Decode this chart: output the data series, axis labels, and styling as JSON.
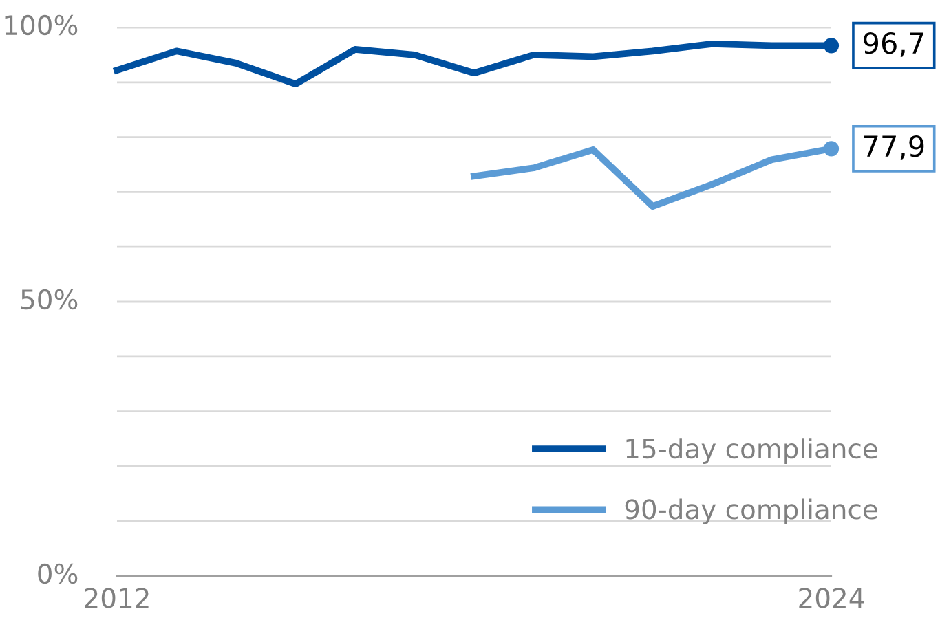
{
  "chart_data": {
    "type": "line",
    "x": [
      2012,
      2013,
      2014,
      2015,
      2016,
      2017,
      2018,
      2019,
      2020,
      2021,
      2022,
      2023,
      2024
    ],
    "series": [
      {
        "name": "15-day compliance",
        "color": "#0050a0",
        "values": [
          92.2,
          95.7,
          93.5,
          89.7,
          96.0,
          95.0,
          91.7,
          95.0,
          94.7,
          95.7,
          97.0,
          96.7,
          96.7
        ],
        "value_labels": [
          null,
          null,
          null,
          null,
          null,
          null,
          null,
          null,
          null,
          null,
          null,
          null,
          "96,7"
        ]
      },
      {
        "name": "90-day compliance",
        "color": "#5b9bd5",
        "values": [
          null,
          null,
          null,
          null,
          null,
          null,
          72.9,
          74.4,
          77.7,
          67.4,
          71.4,
          75.9,
          77.9
        ],
        "value_labels": [
          null,
          null,
          null,
          null,
          null,
          null,
          null,
          null,
          null,
          null,
          null,
          null,
          "77,9"
        ]
      }
    ],
    "xlim": [
      2012,
      2024
    ],
    "xticks": [
      2012,
      2024
    ],
    "ylim": [
      0,
      100
    ],
    "yticks": [
      {
        "value": 0,
        "label": "0%"
      },
      {
        "value": 10,
        "label": null
      },
      {
        "value": 20,
        "label": null
      },
      {
        "value": 30,
        "label": null
      },
      {
        "value": 40,
        "label": null
      },
      {
        "value": 50,
        "label": "50%"
      },
      {
        "value": 60,
        "label": null
      },
      {
        "value": 70,
        "label": null
      },
      {
        "value": 80,
        "label": null
      },
      {
        "value": 90,
        "label": null
      },
      {
        "value": 100,
        "label": "100%"
      }
    ],
    "grid": "y",
    "legend": "bottom right",
    "line_style": "solid"
  }
}
